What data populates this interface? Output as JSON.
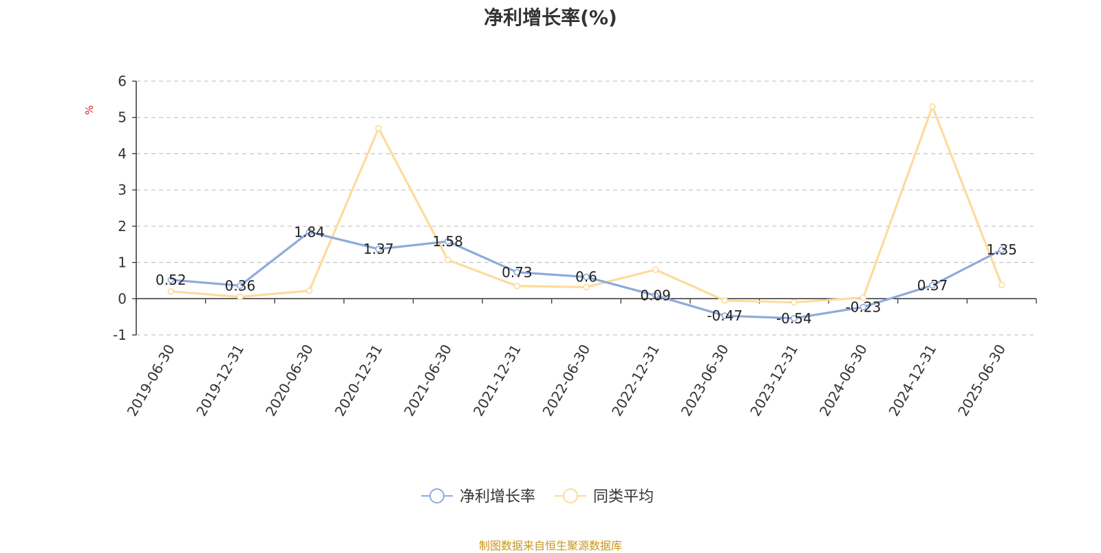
{
  "header": {
    "title": "净利增长率(%)"
  },
  "footer": {
    "source": "制图数据来自恒生聚源数据库"
  },
  "chart_data": {
    "type": "line",
    "title": "净利增长率(%)",
    "ylabel": "%",
    "xlabel": "",
    "ylim": [
      -1,
      6
    ],
    "yticks": [
      -1,
      0,
      1,
      2,
      3,
      4,
      5,
      6
    ],
    "grid": true,
    "legend_position": "bottom",
    "categories": [
      "2019-06-30",
      "2019-12-31",
      "2020-06-30",
      "2020-12-31",
      "2021-06-30",
      "2021-12-31",
      "2022-06-30",
      "2022-12-31",
      "2023-06-30",
      "2023-12-31",
      "2024-06-30",
      "2024-12-31",
      "2025-06-30"
    ],
    "series": [
      {
        "name": "净利增长率",
        "color": "#8eaadb",
        "show_labels": true,
        "values": [
          0.52,
          0.36,
          1.84,
          1.37,
          1.58,
          0.73,
          0.6,
          0.09,
          -0.47,
          -0.54,
          -0.23,
          0.37,
          1.35
        ]
      },
      {
        "name": "同类平均",
        "color": "#fddb9b",
        "show_labels": false,
        "values": [
          0.2,
          0.05,
          0.22,
          4.7,
          1.07,
          0.35,
          0.32,
          0.8,
          -0.05,
          -0.1,
          0.03,
          5.3,
          0.38
        ]
      }
    ]
  }
}
